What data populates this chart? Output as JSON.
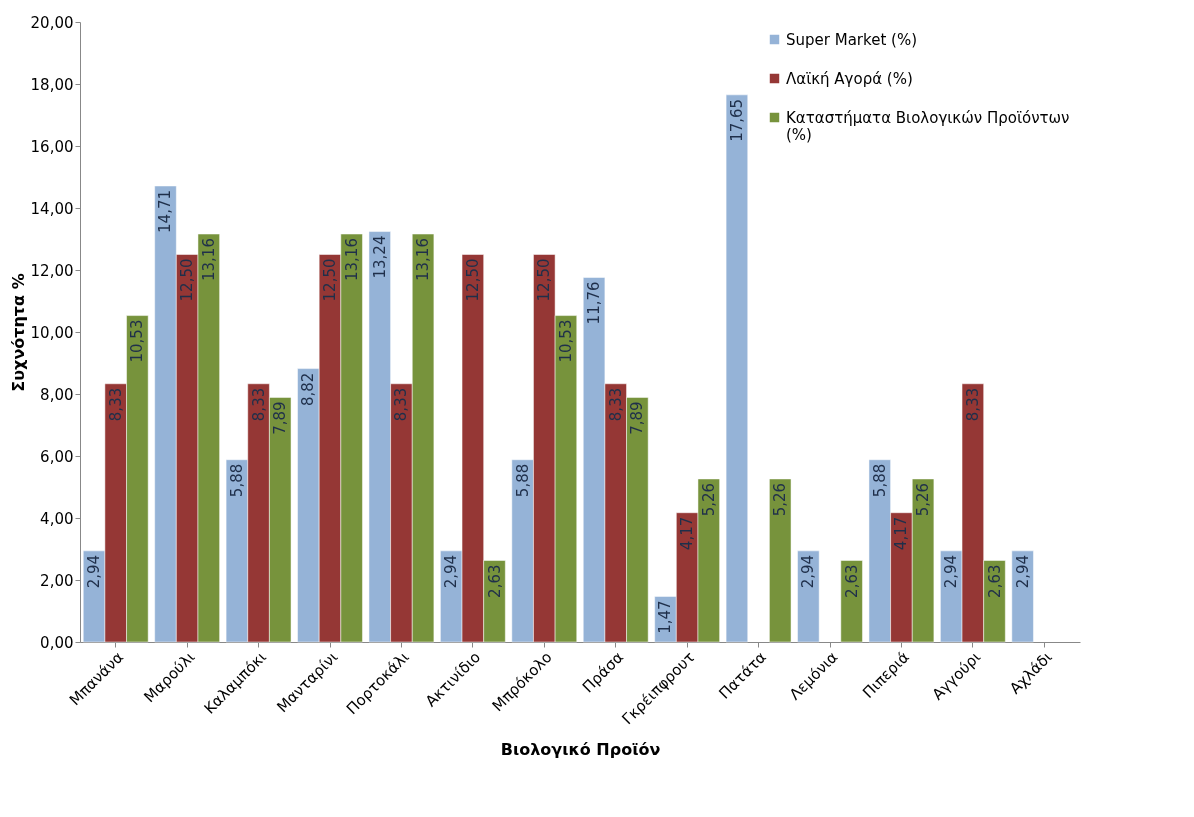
{
  "chart_data": {
    "type": "bar",
    "xlabel": "Βιολογικό Προϊόν",
    "ylabel": "Συχνότητα %",
    "categories": [
      "Μπανάνα",
      "Μαρούλι",
      "Καλαμπόκι",
      "Μανταρίνι",
      "Πορτοκάλι",
      "Ακτινίδιο",
      "Μπρόκολο",
      "Πράσα",
      "Γκρέιπφρουτ",
      "Πατάτα",
      "Λεμόνια",
      "Πιπεριά",
      "Αγγούρι",
      "Αχλάδι"
    ],
    "series": [
      {
        "name": "Super Market (%)",
        "color": "#95b3d7",
        "values": [
          2.94,
          14.71,
          5.88,
          8.82,
          13.24,
          2.94,
          5.88,
          11.76,
          1.47,
          17.65,
          2.94,
          5.88,
          2.94,
          2.94
        ],
        "value_labels": [
          "2,94",
          "14,71",
          "5,88",
          "8,82",
          "13,24",
          "2,94",
          "5,88",
          "11,76",
          "1,47",
          "17,65",
          "2,94",
          "5,88",
          "2,94",
          "2,94"
        ]
      },
      {
        "name": "Λαϊκή Αγορά (%)",
        "color": "#953735",
        "values": [
          8.33,
          12.5,
          8.33,
          12.5,
          8.33,
          12.5,
          12.5,
          8.33,
          4.17,
          null,
          null,
          4.17,
          8.33,
          null
        ],
        "value_labels": [
          "8,33",
          "12,50",
          "8,33",
          "12,50",
          "8,33",
          "12,50",
          "12,50",
          "8,33",
          "4,17",
          null,
          null,
          "4,17",
          "8,33",
          null
        ]
      },
      {
        "name": "Καταστήματα Βιολογικών Προϊόντων (%)",
        "color": "#77933c",
        "values": [
          10.53,
          13.16,
          7.89,
          13.16,
          13.16,
          2.63,
          10.53,
          7.89,
          5.26,
          5.26,
          2.63,
          5.26,
          2.63,
          null
        ],
        "value_labels": [
          "10,53",
          "13,16",
          "7,89",
          "13,16",
          "13,16",
          "2,63",
          "10,53",
          "7,89",
          "5,26",
          "5,26",
          "2,63",
          "5,26",
          "2,63",
          null
        ]
      }
    ],
    "ylim": [
      0,
      20
    ],
    "yticks": [
      {
        "value": 0,
        "label": "0,00"
      },
      {
        "value": 2,
        "label": "2,00"
      },
      {
        "value": 4,
        "label": "4,00"
      },
      {
        "value": 6,
        "label": "6,00"
      },
      {
        "value": 8,
        "label": "8,00"
      },
      {
        "value": 10,
        "label": "10,00"
      },
      {
        "value": 12,
        "label": "12,00"
      },
      {
        "value": 14,
        "label": "14,00"
      },
      {
        "value": 16,
        "label": "16,00"
      },
      {
        "value": 18,
        "label": "18,00"
      },
      {
        "value": 20,
        "label": "20,00"
      }
    ],
    "grid": false,
    "legend": "top right"
  }
}
